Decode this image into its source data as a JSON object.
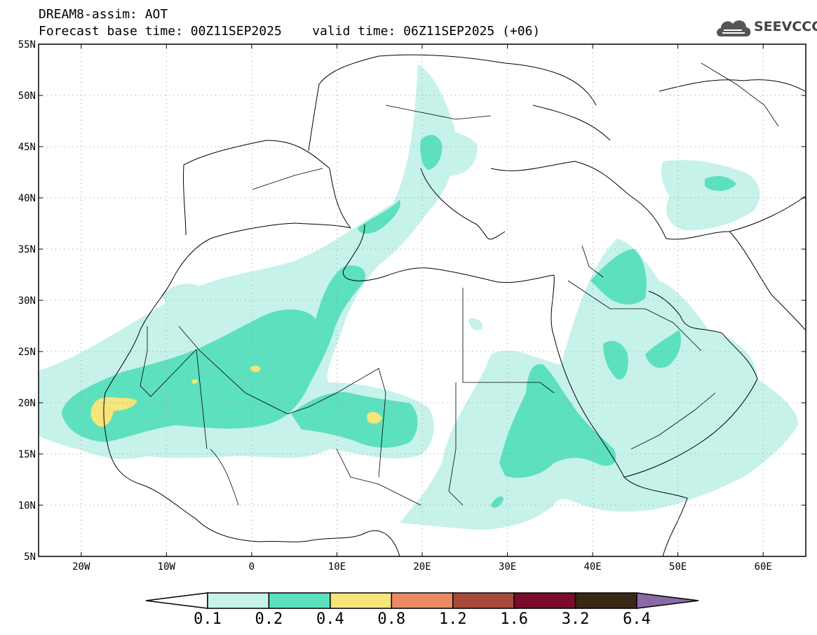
{
  "header": {
    "title_line1": "DREAM8-assim: AOT",
    "title_line2": "Forecast base time: 00Z11SEP2025    valid time: 06Z11SEP2025 (+06)"
  },
  "logo": {
    "text": "SEEVCCC",
    "icon": "cloud-icon"
  },
  "map": {
    "lat_labels": [
      "55N",
      "50N",
      "45N",
      "40N",
      "35N",
      "30N",
      "25N",
      "20N",
      "15N",
      "10N",
      "5N"
    ],
    "lon_labels": [
      "20W",
      "10W",
      "0",
      "10E",
      "20E",
      "30E",
      "40E",
      "50E",
      "60E"
    ],
    "lat_values": [
      55,
      50,
      45,
      40,
      35,
      30,
      25,
      20,
      15,
      10,
      5
    ],
    "lon_values": [
      -20,
      -10,
      0,
      10,
      20,
      30,
      40,
      50,
      60
    ],
    "lon_range": [
      -25,
      65
    ],
    "lat_range": [
      5,
      55
    ]
  },
  "colorbar": {
    "labels": [
      "0.1",
      "0.2",
      "0.4",
      "0.8",
      "1.2",
      "1.6",
      "3.2",
      "6.4"
    ],
    "colors": [
      "#ffffff",
      "#c6f2ea",
      "#5de0bd",
      "#f5e57a",
      "#e98c66",
      "#a8493a",
      "#7a0b2d",
      "#3a2816",
      "#8a6aa6"
    ]
  }
}
